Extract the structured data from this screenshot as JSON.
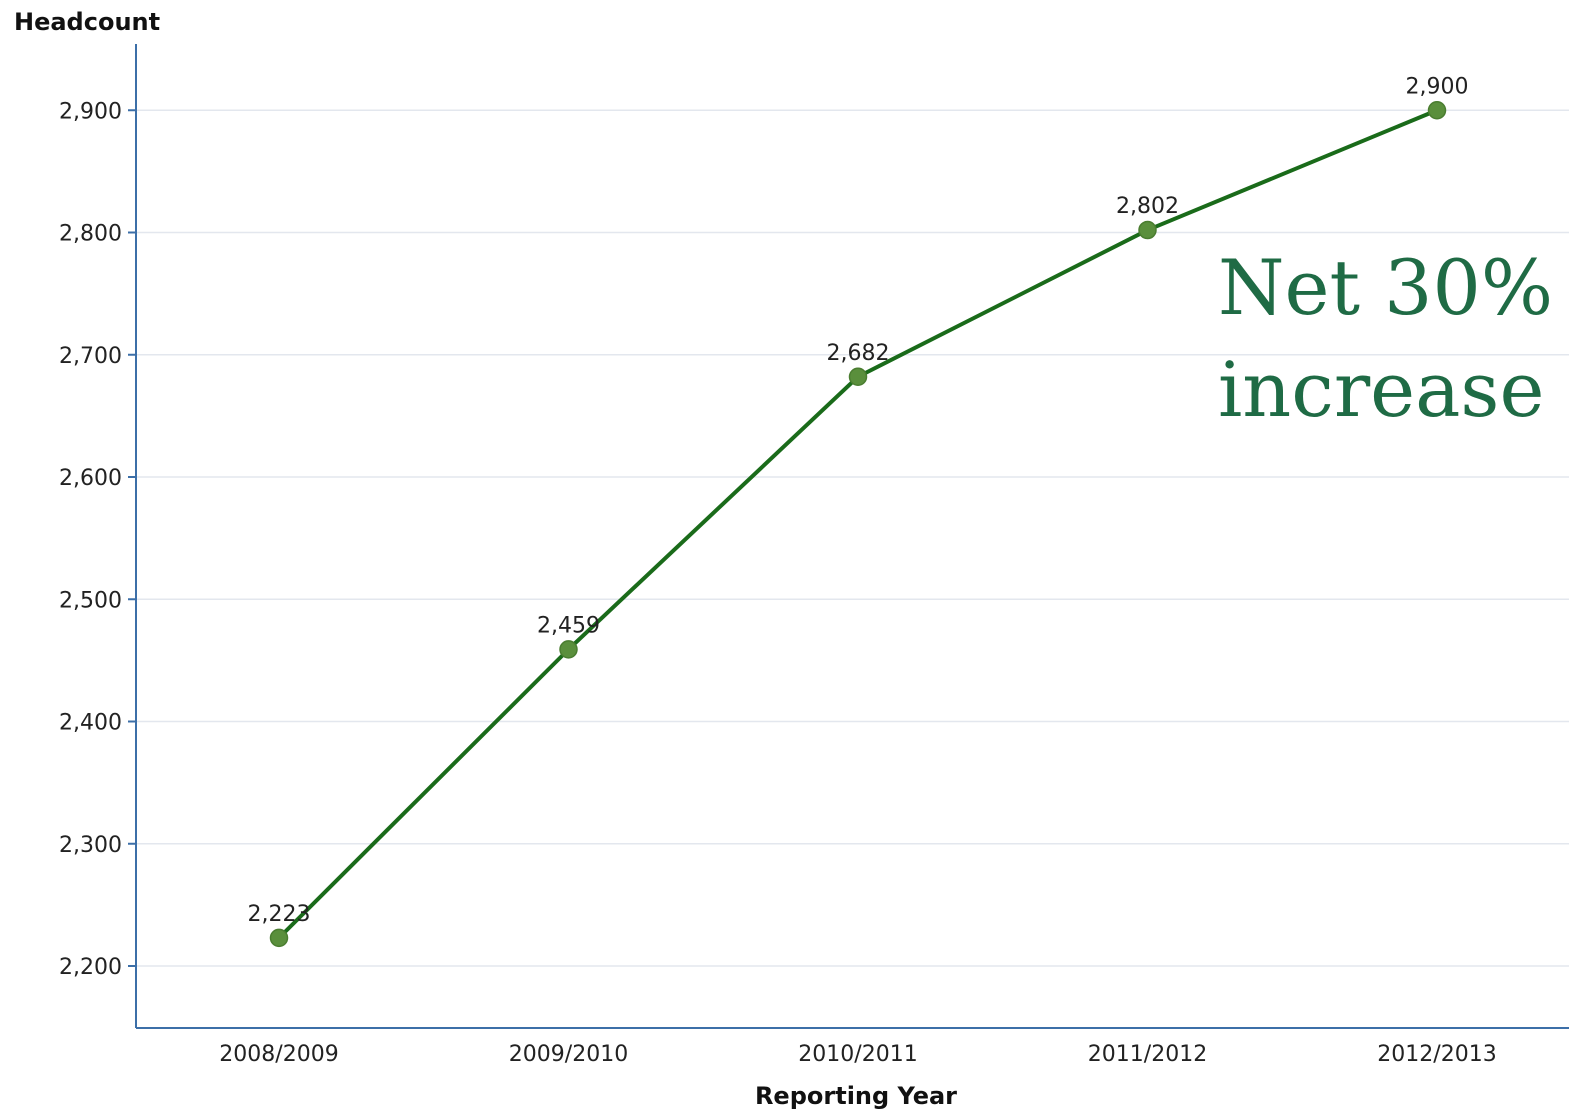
{
  "chart_data": {
    "type": "line",
    "ylabel": "Headcount",
    "xlabel": "Reporting Year",
    "categories": [
      "2008/2009",
      "2009/2010",
      "2010/2011",
      "2011/2012",
      "2012/2013"
    ],
    "series": [
      {
        "values": [
          2223,
          2459,
          2682,
          2802,
          2900
        ],
        "data_labels": [
          "2,223",
          "2,459",
          "2,682",
          "2,802",
          "2,900"
        ]
      }
    ],
    "ylim": [
      2150,
      2950
    ],
    "yticks": [
      2200,
      2300,
      2400,
      2500,
      2600,
      2700,
      2800,
      2900
    ],
    "ytick_labels": [
      "2,200",
      "2,300",
      "2,400",
      "2,500",
      "2,600",
      "2,700",
      "2,800",
      "2,900"
    ],
    "grid": "horizontal",
    "annotation": {
      "lines": [
        "Net 30%",
        "increase"
      ]
    },
    "colors": {
      "line": "#1a6b1a",
      "marker": "#5a8f3c",
      "annotation": "#1f6b45",
      "axis": "#3c6fa8",
      "grid": "#e3e7ee"
    }
  }
}
